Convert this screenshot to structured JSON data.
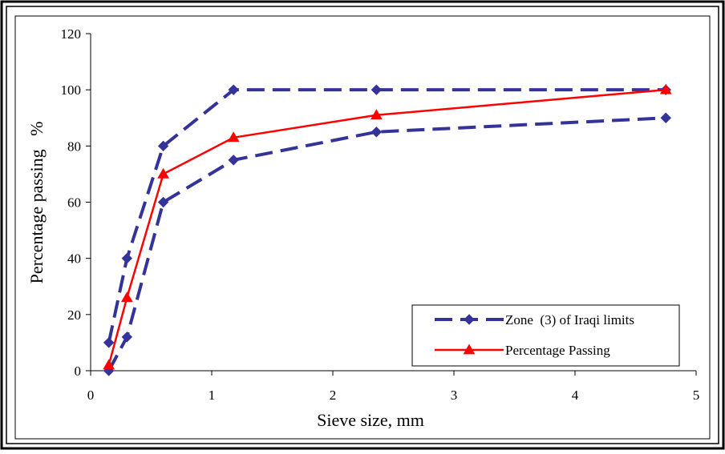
{
  "chart_data": {
    "type": "line",
    "xlabel": "Sieve size, mm",
    "ylabel": "Percentage passing   %",
    "xlim": [
      0,
      5
    ],
    "ylim": [
      0,
      120
    ],
    "xticks": [
      "0",
      "1",
      "2",
      "3",
      "4",
      "5"
    ],
    "yticks": [
      "0",
      "20",
      "40",
      "60",
      "80",
      "100",
      "120"
    ],
    "grid": false,
    "legend_position": "bottom-right",
    "series": [
      {
        "name": "Zone  (3) of Iraqi limits",
        "style": "dashed",
        "marker": "diamond",
        "color": "#33339A",
        "segments": [
          {
            "x": [
              0.15,
              0.3,
              0.6,
              1.18,
              2.36,
              4.75
            ],
            "y": [
              10,
              40,
              80,
              100,
              100,
              100
            ]
          },
          {
            "x": [
              0.15,
              0.3,
              0.6,
              1.18,
              2.36,
              4.75
            ],
            "y": [
              0,
              12,
              60,
              75,
              85,
              90
            ]
          }
        ]
      },
      {
        "name": "Percentage Passing",
        "style": "solid",
        "marker": "triangle",
        "color": "#FF0000",
        "segments": [
          {
            "x": [
              0.15,
              0.3,
              0.6,
              1.18,
              2.36,
              4.75
            ],
            "y": [
              2,
              26,
              70,
              83,
              91,
              100
            ]
          }
        ]
      }
    ]
  }
}
